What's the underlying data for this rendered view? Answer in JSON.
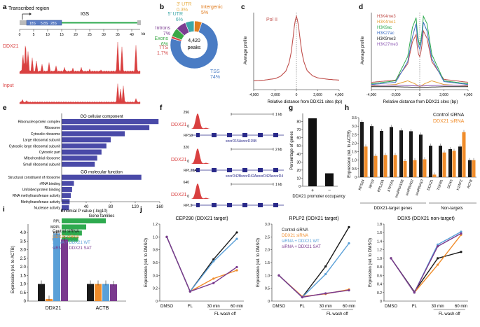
{
  "panel_labels": [
    "a",
    "b",
    "c",
    "d",
    "e",
    "f",
    "g",
    "h",
    "i",
    "j"
  ],
  "colors": {
    "red": "#d94040",
    "blue": "#3f4fa8",
    "green": "#2eaa4f",
    "orange": "#f08c2a",
    "black": "#1a1a1a",
    "lightblue": "#5aa0d8",
    "purple": "#7a3a8e",
    "pie_blue": "#4a7cc4",
    "pie_orange": "#e07c1f",
    "pie_green": "#39a845",
    "pie_purple": "#7b3d91",
    "pie_yellow": "#e8b04a",
    "pie_red": "#d44a4a",
    "pie_teal": "#3ca7a7"
  },
  "a": {
    "transcribed_region": "Transcribed region",
    "igs": "IGS",
    "rrna": [
      "18S",
      "5.8S",
      "28S"
    ],
    "track_labels": [
      "DDX21",
      "Input"
    ],
    "x_ticks": [
      "0",
      "5",
      "10",
      "15",
      "20",
      "25",
      "30",
      "35",
      "40",
      "kb"
    ],
    "ddx21_peaks_kb": [
      [
        1.2,
        0.6
      ],
      [
        2.1,
        0.95
      ],
      [
        3.0,
        0.7
      ],
      [
        4.5,
        0.5
      ],
      [
        6.0,
        0.4
      ],
      [
        8.0,
        0.3
      ],
      [
        10.5,
        0.35
      ],
      [
        13.0,
        0.25
      ],
      [
        16.0,
        0.2
      ],
      [
        19.0,
        0.18
      ],
      [
        22.0,
        0.2
      ],
      [
        25.0,
        0.15
      ],
      [
        29.0,
        0.12
      ],
      [
        35.0,
        1.0
      ],
      [
        36.5,
        0.85
      ],
      [
        41.5,
        0.9
      ]
    ],
    "input_peaks_kb": [
      [
        1.0,
        0.2
      ],
      [
        2.5,
        0.15
      ],
      [
        35.0,
        0.95
      ],
      [
        36.0,
        0.7
      ],
      [
        37.0,
        0.85
      ],
      [
        41.5,
        0.25
      ]
    ]
  },
  "b": {
    "chart_data": {
      "type": "pie",
      "title": "",
      "center_label": [
        "4,420",
        "peaks"
      ],
      "slices": [
        {
          "label": "TSS",
          "value": 74,
          "display": "TSS\n74%",
          "color": "#4a7cc4"
        },
        {
          "label": "TTS",
          "value": 1.7,
          "display": "TTS\n1.7%",
          "color": "#d44a4a"
        },
        {
          "label": "Exons",
          "value": 6,
          "display": "Exons\n6%",
          "color": "#39a845"
        },
        {
          "label": "Introns",
          "value": 7,
          "display": "Introns\n7%",
          "color": "#7b3d91"
        },
        {
          "label": "5' UTR",
          "value": 6,
          "display": "5' UTR\n6%",
          "color": "#3ca7a7"
        },
        {
          "label": "3' UTR",
          "value": 0.3,
          "display": "3' UTR\n0.3%",
          "color": "#e8b04a"
        },
        {
          "label": "Intergenic",
          "value": 5,
          "display": "Intergenic\n5%",
          "color": "#e07c1f"
        }
      ]
    }
  },
  "c": {
    "chart_data": {
      "type": "line",
      "title": "Pol II",
      "xlabel": "Relative distance from DDX21 sites (bp)",
      "ylabel": "Average profile",
      "xlim": [
        -4000,
        4000
      ],
      "x_ticks": [
        "-4,000",
        "-2,000",
        "0",
        "2,000",
        "4,000"
      ],
      "series": [
        {
          "name": "Pol II",
          "color": "#c0504d",
          "x": [
            -4000,
            -3000,
            -2000,
            -1500,
            -1000,
            -700,
            -500,
            -300,
            -150,
            0,
            150,
            300,
            500,
            700,
            1000,
            1500,
            2000,
            3000,
            4000
          ],
          "y": [
            0.12,
            0.13,
            0.15,
            0.18,
            0.25,
            0.36,
            0.5,
            0.72,
            0.92,
            1.0,
            0.92,
            0.74,
            0.52,
            0.38,
            0.26,
            0.19,
            0.16,
            0.14,
            0.13
          ]
        }
      ]
    }
  },
  "d": {
    "chart_data": {
      "type": "line",
      "xlabel": "Relative distance from DDX21 sites (bp)",
      "ylabel": "Average profile",
      "xlim": [
        -4000,
        4000
      ],
      "x_ticks": [
        "-4,000",
        "-2,000",
        "0",
        "2,000",
        "4,000"
      ],
      "legend": [
        "H3K4me3",
        "H3K4me1",
        "H3K9ac",
        "H3K27ac",
        "H3K9me3",
        "H3K27me3"
      ],
      "series": [
        {
          "name": "H3K4me3",
          "color": "#c0504d",
          "x": [
            -4000,
            -2000,
            -1000,
            -600,
            -300,
            -150,
            0,
            150,
            300,
            600,
            1000,
            2000,
            4000
          ],
          "y": [
            0.1,
            0.13,
            0.35,
            0.65,
            0.75,
            0.5,
            0.45,
            0.55,
            0.8,
            0.7,
            0.38,
            0.14,
            0.1
          ]
        },
        {
          "name": "H3K4me1",
          "color": "#e6a23c",
          "x": [
            -4000,
            -2000,
            -1000,
            -400,
            0,
            400,
            1000,
            2000,
            4000
          ],
          "y": [
            0.05,
            0.07,
            0.12,
            0.08,
            0.04,
            0.08,
            0.12,
            0.07,
            0.05
          ]
        },
        {
          "name": "H3K9ac",
          "color": "#2eaa4f",
          "x": [
            -4000,
            -2000,
            -1000,
            -600,
            -300,
            -150,
            0,
            150,
            300,
            600,
            1000,
            2000,
            4000
          ],
          "y": [
            0.08,
            0.12,
            0.45,
            0.85,
            0.98,
            0.7,
            0.6,
            0.72,
            1.0,
            0.9,
            0.48,
            0.12,
            0.08
          ]
        },
        {
          "name": "H3K27ac",
          "color": "#3f6fc4",
          "x": [
            -4000,
            -2000,
            -1000,
            -600,
            -300,
            -150,
            0,
            150,
            300,
            600,
            1000,
            2000,
            4000
          ],
          "y": [
            0.07,
            0.1,
            0.38,
            0.72,
            0.9,
            0.62,
            0.55,
            0.65,
            0.92,
            0.8,
            0.42,
            0.11,
            0.07
          ]
        },
        {
          "name": "H3K9me3",
          "color": "#222222",
          "x": [
            -4000,
            -2000,
            0,
            2000,
            4000
          ],
          "y": [
            0.04,
            0.04,
            0.03,
            0.04,
            0.04
          ]
        },
        {
          "name": "H3K27me3",
          "color": "#8e5bb5",
          "x": [
            -4000,
            -2000,
            0,
            2000,
            4000
          ],
          "y": [
            0.06,
            0.06,
            0.05,
            0.06,
            0.06
          ]
        }
      ]
    }
  },
  "e": {
    "chart_data": {
      "type": "bar",
      "orientation": "horizontal",
      "xlabel": "Binomial P value (-log10)",
      "xlim": [
        0,
        160
      ],
      "x_ticks": [
        "40",
        "80",
        "120",
        "160"
      ],
      "groups": [
        {
          "title": "GO cellular component",
          "color": "#4a4aa8",
          "categories": [
            "Ribonucleoprotein complex",
            "Ribosome",
            "Cytosolic ribosome",
            "Large ribosomal subunit",
            "Cytosolic large ribosomal subunit",
            "Cytosolic part",
            "Mitochondrial ribosome",
            "Small ribosomal subunit"
          ],
          "values": [
            158,
            143,
            103,
            80,
            73,
            65,
            58,
            54
          ]
        },
        {
          "title": "GO molecular function",
          "color": "#4a4aa8",
          "categories": [
            "Structural constituent of ribosome",
            "rRNA binding",
            "Unfolded protein binding",
            "RNA methyltransferase activity",
            "Methyltransferase activity",
            "Nuclease activity"
          ],
          "values": [
            130,
            20,
            17,
            15,
            13,
            12
          ]
        },
        {
          "title": "Gene families",
          "color": "#2eaa4f",
          "categories": [
            "RPL",
            "MRPL",
            "RPS",
            "PSM"
          ],
          "values": [
            72,
            40,
            33,
            27
          ]
        }
      ]
    }
  },
  "f": {
    "tracks": [
      {
        "label": "DDX21",
        "max": "296",
        "scale": "1 kb",
        "genes": [
          "RPS3",
          "snorD15A",
          "snorD15B"
        ]
      },
      {
        "label": "DDX21",
        "max": "320",
        "scale": "2 kb",
        "genes": [
          "RPL23A",
          "snorD42B",
          "snorD42A",
          "snorD42A",
          "snorD4"
        ]
      },
      {
        "label": "DDX21",
        "max": "640",
        "scale": "1 kb",
        "genes": [
          "RPL9"
        ]
      }
    ]
  },
  "g": {
    "chart_data": {
      "type": "bar",
      "ylabel": "Percentage of genes",
      "ylim": [
        0,
        90
      ],
      "y_ticks": [
        "0",
        "10",
        "20",
        "30",
        "40",
        "50",
        "60",
        "70",
        "80"
      ],
      "categories": [
        "+",
        "−"
      ],
      "values": [
        84,
        16
      ],
      "xlabel": "DDX21 promoter occupancy"
    }
  },
  "h": {
    "chart_data": {
      "type": "bar",
      "ylabel": "Expression (rel. to ACTB)",
      "ylim": [
        0,
        3.5
      ],
      "y_ticks": [
        "0",
        "0.5",
        "1.0",
        "1.5",
        "2.0",
        "2.5",
        "3.0",
        "3.5"
      ],
      "legend": [
        "Control siRNA",
        "DDX21 siRNA"
      ],
      "categories": [
        "RPS24",
        "RPS3",
        "RPL23A",
        "ATP5A1",
        "snoRNA15B",
        "snoRNA62",
        "snoRNA10",
        "DDX21",
        "TGFB1",
        "DDX5",
        "H2AFZ",
        "ACTB"
      ],
      "series": [
        {
          "name": "Control siRNA",
          "color": "#1a1a1a",
          "values": [
            3.25,
            3.0,
            2.72,
            2.95,
            2.75,
            2.7,
            2.5,
            1.85,
            1.85,
            1.65,
            1.8,
            1.0
          ]
        },
        {
          "name": "DDX21 siRNA",
          "color": "#f08c2a",
          "values": [
            1.8,
            1.25,
            1.3,
            1.3,
            0.95,
            1.0,
            1.05,
            0.15,
            1.45,
            1.55,
            2.65,
            1.0
          ]
        }
      ],
      "group_labels": [
        "DDX21-target genes",
        "Non-targets"
      ]
    }
  },
  "i": {
    "chart_data": {
      "type": "bar",
      "ylabel": "Expression (rel. to ACTB)",
      "ylim": [
        0,
        4.5
      ],
      "y_ticks": [
        "0",
        "0.5",
        "1.0",
        "1.5",
        "2.0",
        "2.5",
        "3.0",
        "3.5",
        "4.0"
      ],
      "legend": [
        "Control siRNA",
        "DDX21 siRNA",
        "siRNA + DDX21 WT",
        "siRNA + DDX21 SAT"
      ],
      "categories": [
        "DDX21",
        "ACTB"
      ],
      "series": [
        {
          "name": "Control siRNA",
          "color": "#1a1a1a",
          "values": [
            1.0,
            1.0
          ]
        },
        {
          "name": "DDX21 siRNA",
          "color": "#f08c2a",
          "values": [
            0.12,
            1.0
          ]
        },
        {
          "name": "siRNA + DDX21 WT",
          "color": "#5aa0d8",
          "values": [
            3.95,
            1.0
          ]
        },
        {
          "name": "siRNA + DDX21 SAT",
          "color": "#7a3a8e",
          "values": [
            3.6,
            0.98
          ]
        }
      ]
    }
  },
  "j": {
    "charts": [
      {
        "type": "line",
        "title": "CEP290 (DDX21 target)",
        "ylabel": "Expression (rel. to DMSO)",
        "ylim": [
          0,
          1.2
        ],
        "y_ticks": [
          "0",
          "0.2",
          "0.4",
          "0.6",
          "0.8",
          "1.0",
          "1.2"
        ],
        "categories": [
          "DMSO",
          "FL",
          "30 min",
          "60 min"
        ],
        "xlabel": "FL wash off",
        "series": [
          {
            "name": "Control siRNA",
            "color": "#1a1a1a",
            "values": [
              1.0,
              0.15,
              0.65,
              1.07
            ]
          },
          {
            "name": "DDX21 siRNA",
            "color": "#f08c2a",
            "values": [
              1.0,
              0.15,
              0.35,
              0.48
            ]
          },
          {
            "name": "siRNA + DDX21 WT",
            "color": "#5aa0d8",
            "values": [
              1.0,
              0.15,
              0.62,
              0.97
            ]
          },
          {
            "name": "siRNA + DDX21 SAT",
            "color": "#7a3a8e",
            "values": [
              1.0,
              0.15,
              0.28,
              0.53
            ]
          }
        ]
      },
      {
        "type": "line",
        "title": "RPLP2 (DDX21 target)",
        "ylabel": "Expression (rel. to DMSO)",
        "ylim": [
          0,
          3.0
        ],
        "y_ticks": [
          "0",
          "0.5",
          "1.0",
          "1.5",
          "2.0",
          "2.5",
          "3.0"
        ],
        "categories": [
          "DMSO",
          "FL",
          "30 min",
          "60 min"
        ],
        "xlabel": "FL wash off",
        "legend": [
          "Control siRNA",
          "DDX21 siRNA",
          "siRNA + DDX21 WT",
          "siRNA + DDX21 SAT"
        ],
        "series": [
          {
            "name": "Control siRNA",
            "color": "#1a1a1a",
            "values": [
              1.0,
              0.15,
              1.35,
              2.88
            ]
          },
          {
            "name": "DDX21 siRNA",
            "color": "#f08c2a",
            "values": [
              1.0,
              0.18,
              0.28,
              0.45
            ]
          },
          {
            "name": "siRNA + DDX21 WT",
            "color": "#5aa0d8",
            "values": [
              1.0,
              0.15,
              1.05,
              2.25
            ]
          },
          {
            "name": "siRNA + DDX21 SAT",
            "color": "#7a3a8e",
            "values": [
              1.0,
              0.15,
              0.3,
              0.42
            ]
          }
        ]
      },
      {
        "type": "line",
        "title": "DDX5 (DDX21 non-target)",
        "ylabel": "Expression (rel. to DMSO)",
        "ylim": [
          0,
          1.8
        ],
        "y_ticks": [
          "0",
          "0.2",
          "0.4",
          "0.6",
          "0.8",
          "1.0",
          "1.2",
          "1.4",
          "1.6",
          "1.8"
        ],
        "categories": [
          "DMSO",
          "FL",
          "30 min",
          "60 min"
        ],
        "xlabel": "FL wash off",
        "series": [
          {
            "name": "Control siRNA",
            "color": "#1a1a1a",
            "values": [
              1.0,
              0.22,
              1.0,
              1.15
            ]
          },
          {
            "name": "DDX21 siRNA",
            "color": "#f08c2a",
            "values": [
              1.0,
              0.2,
              0.85,
              1.55
            ]
          },
          {
            "name": "siRNA + DDX21 WT",
            "color": "#5aa0d8",
            "values": [
              1.0,
              0.2,
              1.32,
              1.62
            ]
          },
          {
            "name": "siRNA + DDX21 SAT",
            "color": "#7a3a8e",
            "values": [
              1.0,
              0.2,
              1.28,
              1.58
            ]
          }
        ]
      }
    ]
  }
}
